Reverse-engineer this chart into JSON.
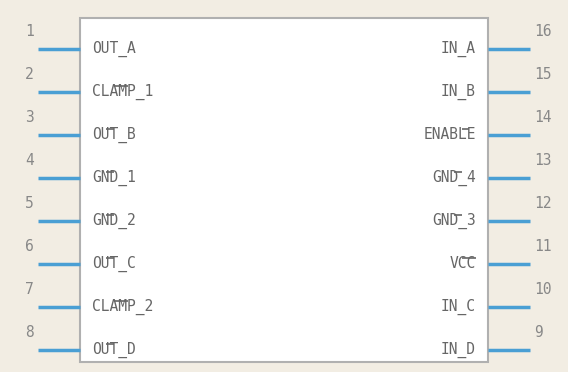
{
  "bg_color": "#f2ede3",
  "rect_color": "#b0b0b0",
  "rect_fill": "#ffffff",
  "pin_color": "#4a9fd4",
  "text_color": "#666666",
  "num_color": "#888888",
  "fig_w": 5.68,
  "fig_h": 3.72,
  "left_pins": [
    {
      "num": 1,
      "label": "OUT_A",
      "ol_cs": -1,
      "ol_ce": -1,
      "n_chars": 5
    },
    {
      "num": 2,
      "label": "CLAMP_1",
      "ol_cs": 3,
      "ol_ce": 4,
      "n_chars": 7
    },
    {
      "num": 3,
      "label": "OUT_B",
      "ol_cs": 2,
      "ol_ce": 2,
      "n_chars": 5
    },
    {
      "num": 4,
      "label": "GND_1",
      "ol_cs": 2,
      "ol_ce": 2,
      "n_chars": 5
    },
    {
      "num": 5,
      "label": "GND_2",
      "ol_cs": 2,
      "ol_ce": 2,
      "n_chars": 5
    },
    {
      "num": 6,
      "label": "OUT_C",
      "ol_cs": 2,
      "ol_ce": 2,
      "n_chars": 5
    },
    {
      "num": 7,
      "label": "CLAMP_2",
      "ol_cs": 3,
      "ol_ce": 4,
      "n_chars": 7
    },
    {
      "num": 8,
      "label": "OUT_D",
      "ol_cs": 2,
      "ol_ce": 2,
      "n_chars": 5
    }
  ],
  "right_pins": [
    {
      "num": 16,
      "label": "IN_A",
      "ol_cs": -1,
      "ol_ce": -1,
      "n_chars": 4
    },
    {
      "num": 15,
      "label": "IN_B",
      "ol_cs": -1,
      "ol_ce": -1,
      "n_chars": 4
    },
    {
      "num": 14,
      "label": "ENABLE",
      "ol_cs": 4,
      "ol_ce": 4,
      "n_chars": 6
    },
    {
      "num": 13,
      "label": "GND_4",
      "ol_cs": 2,
      "ol_ce": 2,
      "n_chars": 5
    },
    {
      "num": 12,
      "label": "GND_3",
      "ol_cs": 2,
      "ol_ce": 2,
      "n_chars": 5
    },
    {
      "num": 11,
      "label": "VCC",
      "ol_cs": 1,
      "ol_ce": 2,
      "n_chars": 3
    },
    {
      "num": 10,
      "label": "IN_C",
      "ol_cs": -1,
      "ol_ce": -1,
      "n_chars": 4
    },
    {
      "num": 9,
      "label": "IN_D",
      "ol_cs": -1,
      "ol_ce": -1,
      "n_chars": 4
    }
  ],
  "font_size": 10.5,
  "num_font_size": 10.5
}
